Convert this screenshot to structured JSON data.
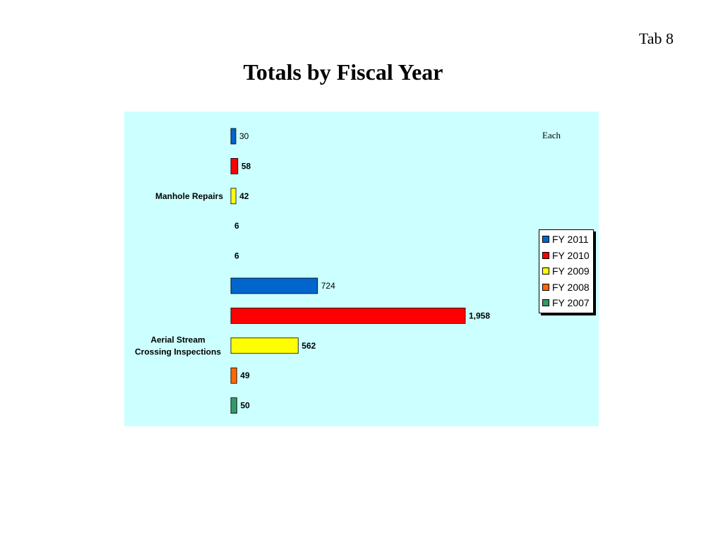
{
  "header": {
    "tab_label": "Tab 8",
    "title": "Totals by Fiscal Year"
  },
  "chart_data": {
    "type": "bar",
    "orientation": "horizontal",
    "unit_label": "Each",
    "categories": [
      "Manhole Repairs",
      "Aerial Stream Crossing Inspections"
    ],
    "category_lines": [
      [
        "Manhole Repairs"
      ],
      [
        "Aerial Stream",
        "Crossing Inspections"
      ]
    ],
    "series": [
      {
        "name": "FY 2011",
        "color": "#0066cc",
        "values": [
          30,
          724
        ],
        "value_labels": [
          "30",
          "724"
        ]
      },
      {
        "name": "FY 2010",
        "color": "#ff0000",
        "values": [
          58,
          1958
        ],
        "value_labels": [
          "58",
          "1,958"
        ]
      },
      {
        "name": "FY 2009",
        "color": "#ffff00",
        "values": [
          42,
          562
        ],
        "value_labels": [
          "42",
          "562"
        ]
      },
      {
        "name": "FY 2008",
        "color": "#ff6600",
        "values": [
          6,
          49
        ],
        "value_labels": [
          "6",
          "49"
        ]
      },
      {
        "name": "FY 2007",
        "color": "#339966",
        "values": [
          6,
          50
        ],
        "value_labels": [
          "6",
          "50"
        ]
      }
    ],
    "legend_position": "right",
    "grid": false
  }
}
